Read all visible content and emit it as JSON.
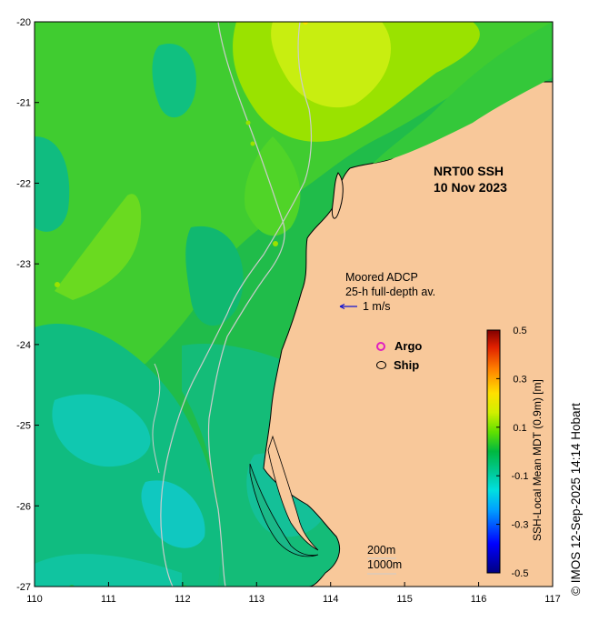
{
  "title_line1": "NRT00 SSH",
  "title_line2": "10 Nov 2023",
  "adcp": {
    "line1": "Moored ADCP",
    "line2": "25-h full-depth av.",
    "scale_label": "1 m/s",
    "arrow_color": "#1010d0"
  },
  "legend": {
    "argo_label": "Argo",
    "argo_color": "#e020c0",
    "ship_label": "Ship",
    "ship_color": "#000000"
  },
  "isobaths": {
    "label1": "200m",
    "label2": "1000m"
  },
  "colorbar": {
    "label": "SSH-Local Mean MDT (0.9m) [m]",
    "ticks": [
      "0.5",
      "0.3",
      "0.1",
      "-0.1",
      "-0.3",
      "-0.5"
    ],
    "min": -0.5,
    "max": 0.5,
    "colormap": "jet"
  },
  "credit": "© IMOS 12-Sep-2025 14:14 Hobart",
  "axes": {
    "x_ticks": [
      "110",
      "111",
      "112",
      "113",
      "114",
      "115",
      "116",
      "117"
    ],
    "y_ticks": [
      "-20",
      "-21",
      "-22",
      "-23",
      "-24",
      "-25",
      "-26",
      "-27"
    ],
    "lon_range": [
      110,
      117
    ],
    "lat_range": [
      -27,
      -20
    ]
  },
  "colors": {
    "land": "#f8c89a",
    "coast": "#000000",
    "isobath": "#cccccc"
  }
}
